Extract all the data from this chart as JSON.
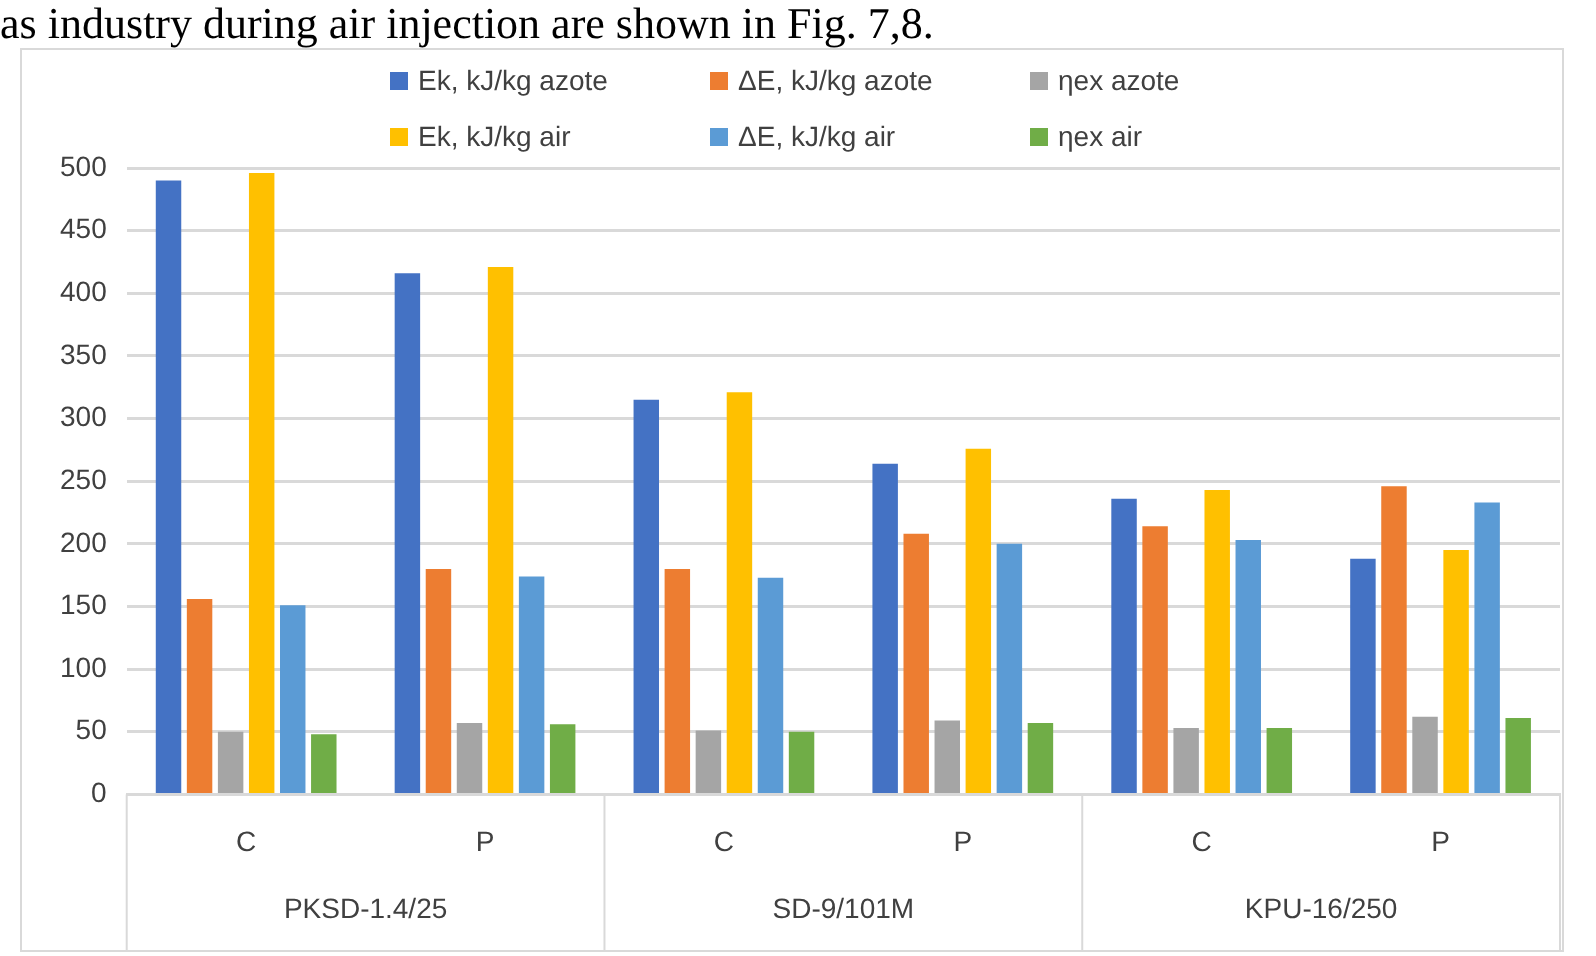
{
  "chart_data": {
    "type": "bar",
    "categories": [
      "C",
      "P",
      "C",
      "P",
      "C",
      "P"
    ],
    "series": [
      {
        "name": "Ek, kJ/kg azote",
        "color": "#4472c4",
        "values": [
          490,
          416,
          315,
          264,
          236,
          188
        ]
      },
      {
        "name": "ΔE, kJ/kg azote",
        "color": "#ed7d31",
        "values": [
          156,
          180,
          180,
          208,
          214,
          246
        ]
      },
      {
        "name": "ηex azote",
        "color": "#a5a5a5",
        "values": [
          50,
          57,
          51,
          59,
          53,
          62
        ]
      },
      {
        "name": "Ek, kJ/kg air",
        "color": "#ffc000",
        "values": [
          496,
          421,
          321,
          276,
          243,
          195
        ]
      },
      {
        "name": "ΔE, kJ/kg air",
        "color": "#5b9bd5",
        "values": [
          151,
          174,
          173,
          200,
          203,
          233
        ]
      },
      {
        "name": "ηex air",
        "color": "#70ad47",
        "values": [
          48,
          56,
          50,
          57,
          53,
          61
        ]
      }
    ],
    "annotations": [
      "as industry during air injection are shown in Fig. 7,8.",
      "PKSD-1.4/25",
      "SD-9/101M",
      "KPU-16/250"
    ],
    "ylim": [
      0,
      500
    ],
    "yticks": [
      0,
      50,
      100,
      150,
      200,
      250,
      300,
      350,
      400,
      450,
      500
    ],
    "grid": "y",
    "legend": "top"
  }
}
